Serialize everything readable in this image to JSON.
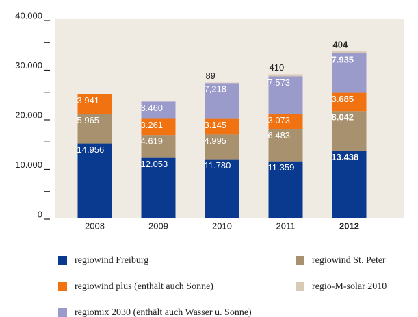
{
  "chart_data": {
    "type": "stacked-bar",
    "categories": [
      "2008",
      "2009",
      "2010",
      "2011",
      "2012"
    ],
    "bold_index": 4,
    "series": [
      {
        "name": "regiowind Freiburg",
        "color": "#0a3a8f",
        "values": [
          14956,
          12053,
          11780,
          11359,
          13438
        ],
        "value_labels": [
          "14.956",
          "12.053",
          "11.780",
          "11.359",
          "13.438"
        ]
      },
      {
        "name": "regiowind St. Peter",
        "color": "#a8916f",
        "values": [
          5965,
          4619,
          4995,
          6483,
          8042
        ],
        "value_labels": [
          "5.965",
          "4.619",
          "4.995",
          "6.483",
          "8.042"
        ]
      },
      {
        "name": "regiowind plus (enthält auch Sonne)",
        "color": "#f07211",
        "values": [
          3941,
          3261,
          3145,
          3073,
          3685
        ],
        "value_labels": [
          "3.941",
          "3.261",
          "3.145",
          "3.073",
          "3.685"
        ]
      },
      {
        "name": "regiomix 2030 (enthält auch Wasser u. Sonne)",
        "color": "#9a9acb",
        "values": [
          null,
          3460,
          7218,
          7573,
          7935
        ],
        "value_labels": [
          null,
          "3.460",
          "7,218",
          "7.573",
          "7.935"
        ]
      },
      {
        "name": "regio-M-solar 2010",
        "color": "#d8cab6",
        "values": [
          null,
          null,
          89,
          410,
          404
        ],
        "value_labels": [
          null,
          null,
          "89",
          "410",
          "404"
        ]
      }
    ],
    "ylim": [
      0,
      40000
    ],
    "yticks": [
      {
        "value": 0,
        "label": "0"
      },
      {
        "value": 10000,
        "label": "10.000"
      },
      {
        "value": 20000,
        "label": "20.000"
      },
      {
        "value": 30000,
        "label": "30.000"
      },
      {
        "value": 40000,
        "label": "40.000"
      }
    ],
    "minor_yticks": [
      5000,
      15000,
      25000,
      35000
    ]
  }
}
